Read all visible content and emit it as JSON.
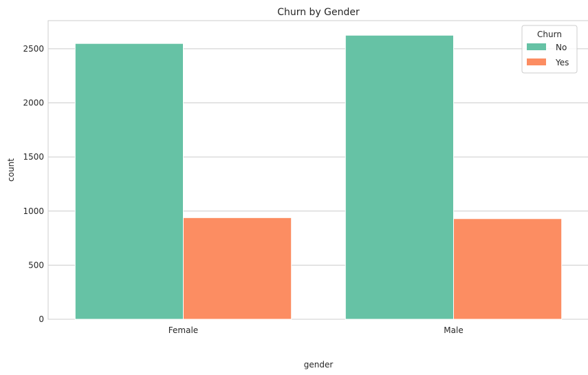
{
  "chart_data": {
    "type": "bar",
    "title": "Churn by Gender",
    "xlabel": "gender",
    "ylabel": "count",
    "categories": [
      "Female",
      "Male"
    ],
    "series": [
      {
        "name": "No",
        "values": [
          2549,
          2625
        ],
        "color": "#66c2a5"
      },
      {
        "name": "Yes",
        "values": [
          939,
          930
        ],
        "color": "#fc8d62"
      }
    ],
    "ylim": [
      0,
      2760
    ],
    "yticks": [
      0,
      500,
      1000,
      1500,
      2000,
      2500
    ],
    "legend": {
      "title": "Churn",
      "position": "top-right"
    },
    "grid": "horizontal"
  }
}
